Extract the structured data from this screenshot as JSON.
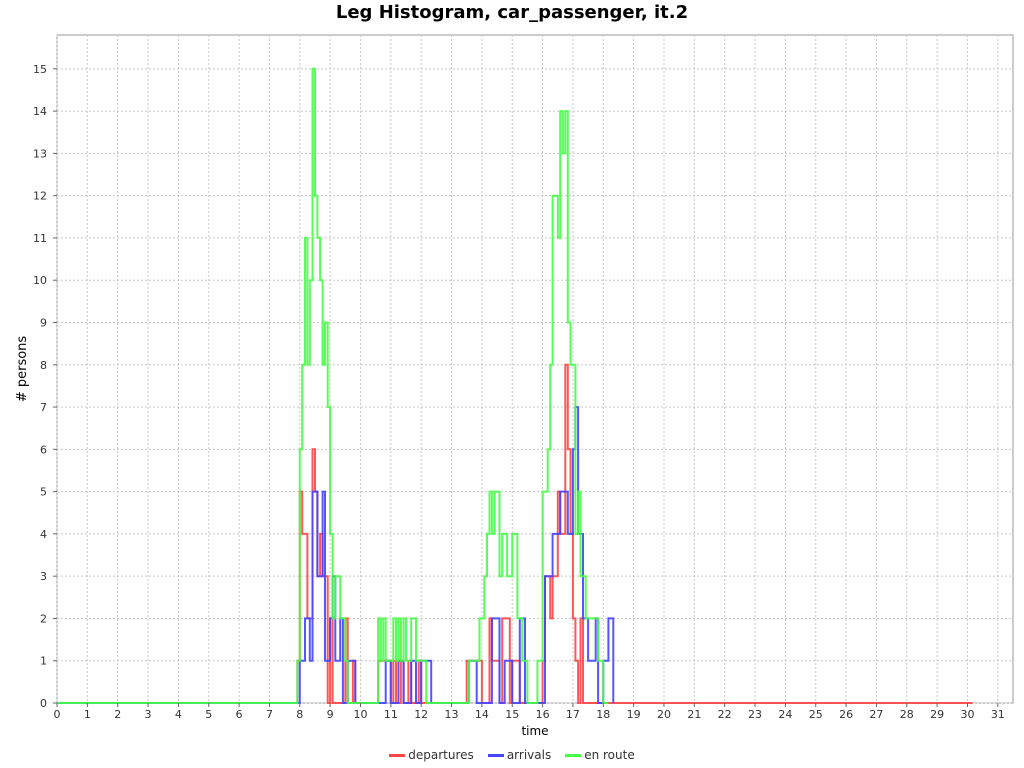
{
  "chart_data": {
    "type": "line",
    "title": "Leg Histogram, car_passenger, it.2",
    "xlabel": "time",
    "ylabel": "# persons",
    "xlim": [
      0,
      31.5
    ],
    "ylim": [
      0,
      15.8
    ],
    "x_ticks": [
      0,
      1,
      2,
      3,
      4,
      5,
      6,
      7,
      8,
      9,
      10,
      11,
      12,
      13,
      14,
      15,
      16,
      17,
      18,
      19,
      20,
      21,
      22,
      23,
      24,
      25,
      26,
      27,
      28,
      29,
      30,
      31
    ],
    "y_ticks": [
      0,
      1,
      2,
      3,
      4,
      5,
      6,
      7,
      8,
      9,
      10,
      11,
      12,
      13,
      14,
      15
    ],
    "grid": true,
    "legend_position": "bottom",
    "series": [
      {
        "name": "departures",
        "color": "#ff4444",
        "step": true,
        "x": [
          0,
          7.92,
          8.0,
          8.08,
          8.25,
          8.42,
          8.5,
          8.58,
          8.67,
          8.75,
          8.92,
          9.0,
          9.08,
          9.5,
          9.58,
          9.75,
          9.83,
          10.58,
          11.0,
          11.08,
          11.17,
          11.33,
          11.42,
          11.58,
          11.67,
          11.92,
          12.0,
          13.5,
          14.0,
          14.25,
          14.33,
          14.58,
          14.67,
          14.92,
          15.0,
          15.25,
          15.33,
          16.0,
          16.08,
          16.25,
          16.33,
          16.5,
          16.58,
          16.75,
          16.83,
          16.92,
          17.0,
          17.08,
          17.17,
          17.25,
          17.33,
          17.42,
          30.17
        ],
        "y": [
          0,
          1,
          5,
          4,
          2,
          6,
          5,
          3,
          4,
          3,
          0,
          2,
          0,
          2,
          0,
          1,
          0,
          1,
          0,
          1,
          0,
          1,
          0,
          1,
          0,
          1,
          0,
          1,
          0,
          2,
          1,
          0,
          2,
          0,
          1,
          0,
          0,
          1,
          3,
          2,
          3,
          5,
          4,
          8,
          6,
          4,
          2,
          1,
          0,
          2,
          0,
          0,
          0
        ]
      },
      {
        "name": "arrivals",
        "color": "#4444ff",
        "step": true,
        "x": [
          0,
          8.0,
          8.17,
          8.33,
          8.42,
          8.58,
          8.75,
          8.83,
          9.0,
          9.08,
          9.17,
          9.33,
          9.42,
          9.58,
          9.83,
          10.0,
          10.83,
          11.0,
          11.25,
          11.42,
          11.67,
          11.83,
          12.0,
          12.33,
          13.58,
          13.83,
          14.33,
          14.58,
          14.75,
          15.0,
          15.25,
          15.42,
          16.08,
          16.33,
          16.58,
          16.83,
          17.0,
          17.08,
          17.17,
          17.33,
          17.5,
          17.75,
          17.83,
          18.0,
          18.17,
          18.33
        ],
        "y": [
          0,
          1,
          2,
          1,
          5,
          3,
          5,
          1,
          2,
          3,
          1,
          2,
          0,
          1,
          0,
          0,
          1,
          0,
          1,
          0,
          1,
          0,
          1,
          0,
          1,
          0,
          2,
          0,
          1,
          0,
          2,
          0,
          3,
          4,
          5,
          4,
          6,
          7,
          4,
          2,
          1,
          2,
          0,
          1,
          2,
          0
        ]
      },
      {
        "name": "en route",
        "color": "#44ff44",
        "step": true,
        "x": [
          0,
          7.92,
          8.0,
          8.08,
          8.17,
          8.25,
          8.33,
          8.42,
          8.5,
          8.58,
          8.67,
          8.75,
          8.83,
          8.92,
          9.0,
          9.08,
          9.17,
          9.33,
          9.5,
          9.58,
          9.67,
          9.83,
          10.0,
          10.58,
          10.67,
          10.75,
          10.83,
          11.08,
          11.17,
          11.25,
          11.33,
          11.42,
          11.5,
          11.67,
          11.83,
          12.0,
          12.17,
          12.33,
          13.58,
          13.92,
          14.08,
          14.17,
          14.25,
          14.33,
          14.42,
          14.58,
          14.67,
          14.83,
          15.0,
          15.17,
          15.33,
          15.5,
          15.83,
          16.0,
          16.17,
          16.25,
          16.33,
          16.5,
          16.58,
          16.67,
          16.75,
          16.83,
          16.92,
          17.08,
          17.17,
          17.25,
          17.42,
          17.58,
          17.83,
          18.0,
          18.17
        ],
        "y": [
          0,
          1,
          6,
          8,
          11,
          8,
          10,
          15,
          12,
          11,
          10,
          8,
          9,
          7,
          4,
          2,
          3,
          2,
          1,
          0,
          0,
          0,
          0,
          2,
          1,
          2,
          1,
          2,
          1,
          2,
          1,
          2,
          1,
          2,
          1,
          1,
          0,
          0,
          1,
          2,
          3,
          4,
          5,
          4,
          5,
          3,
          4,
          3,
          4,
          2,
          1,
          0,
          1,
          5,
          6,
          8,
          12,
          11,
          14,
          13,
          14,
          9,
          8,
          4,
          5,
          3,
          2,
          2,
          1,
          0,
          0
        ]
      }
    ]
  }
}
